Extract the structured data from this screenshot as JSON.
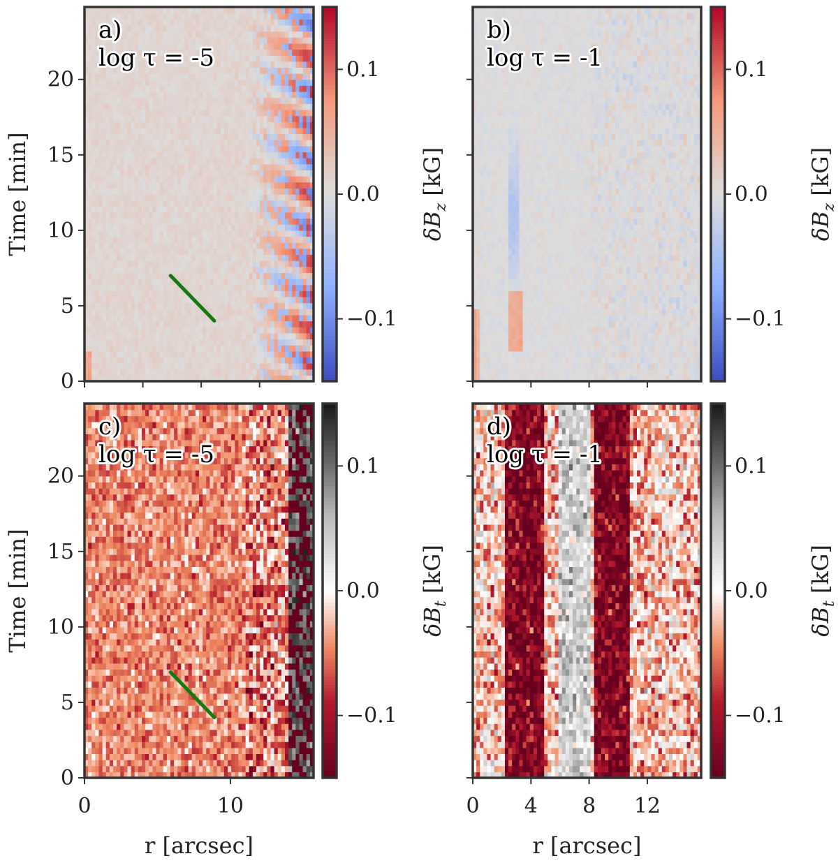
{
  "chart_data": [
    {
      "type": "heatmap",
      "panel_label": "a)",
      "subtitle": "log τ = -5",
      "ylabel": "Time [min]",
      "xlabel": "",
      "xlim": [
        0,
        15.7
      ],
      "ylim": [
        0,
        24.8
      ],
      "x_ticks": [
        0,
        4,
        8,
        12
      ],
      "x_tick_labels": [],
      "y_ticks": [
        0,
        5,
        10,
        15,
        20
      ],
      "y_tick_labels": [
        "0",
        "5",
        "10",
        "15",
        "20"
      ],
      "colormap": "coolwarm",
      "colorbar": {
        "label": "δB_z [kG]",
        "range": [
          -0.15,
          0.15
        ],
        "ticks": [
          -0.1,
          0.0,
          0.1
        ],
        "tick_labels": [
          "−0.1",
          "0.0",
          "0.1"
        ]
      },
      "annotation_line": {
        "from": [
          5.9,
          7.0
        ],
        "to": [
          8.9,
          4.0
        ],
        "color": "#117a11"
      }
    },
    {
      "type": "heatmap",
      "panel_label": "b)",
      "subtitle": "log τ = -1",
      "ylabel": "",
      "xlabel": "",
      "xlim": [
        0,
        15.7
      ],
      "ylim": [
        0,
        24.8
      ],
      "x_ticks": [
        0,
        4,
        8,
        12
      ],
      "x_tick_labels": [],
      "y_ticks": [
        0,
        5,
        10,
        15,
        20
      ],
      "y_tick_labels": [],
      "colormap": "coolwarm",
      "colorbar": {
        "label": "δB_z [kG]",
        "range": [
          -0.15,
          0.15
        ],
        "ticks": [
          -0.1,
          0.0,
          0.1
        ],
        "tick_labels": [
          "−0.1",
          "0.0",
          "0.1"
        ]
      }
    },
    {
      "type": "heatmap",
      "panel_label": "c)",
      "subtitle": "log τ = -5",
      "ylabel": "Time [min]",
      "xlabel": "r [arcsec]",
      "xlim": [
        0,
        15.7
      ],
      "ylim": [
        0,
        24.8
      ],
      "x_ticks": [
        0,
        10
      ],
      "x_tick_labels": [
        "0",
        "10"
      ],
      "y_ticks": [
        0,
        5,
        10,
        15,
        20
      ],
      "y_tick_labels": [
        "0",
        "5",
        "10",
        "15",
        "20"
      ],
      "colormap": "RdGy",
      "colorbar": {
        "label": "δB_t [kG]",
        "range": [
          -0.15,
          0.15
        ],
        "ticks": [
          -0.1,
          0.0,
          0.1
        ],
        "tick_labels": [
          "−0.1",
          "0.0",
          "0.1"
        ]
      },
      "annotation_line": {
        "from": [
          5.9,
          7.0
        ],
        "to": [
          8.9,
          4.0
        ],
        "color": "#117a11"
      }
    },
    {
      "type": "heatmap",
      "panel_label": "d)",
      "subtitle": "log τ = -1",
      "ylabel": "",
      "xlabel": "r [arcsec]",
      "xlim": [
        0,
        15.7
      ],
      "ylim": [
        0,
        24.8
      ],
      "x_ticks": [
        0,
        4,
        8,
        12
      ],
      "x_tick_labels": [
        "0",
        "4",
        "8",
        "12"
      ],
      "y_ticks": [
        0,
        5,
        10,
        15,
        20
      ],
      "y_tick_labels": [],
      "colormap": "RdGy",
      "colorbar": {
        "label": "δB_t [kG]",
        "range": [
          -0.15,
          0.15
        ],
        "ticks": [
          -0.1,
          0.0,
          0.1
        ],
        "tick_labels": [
          "−0.1",
          "0.0",
          "0.1"
        ]
      }
    }
  ]
}
